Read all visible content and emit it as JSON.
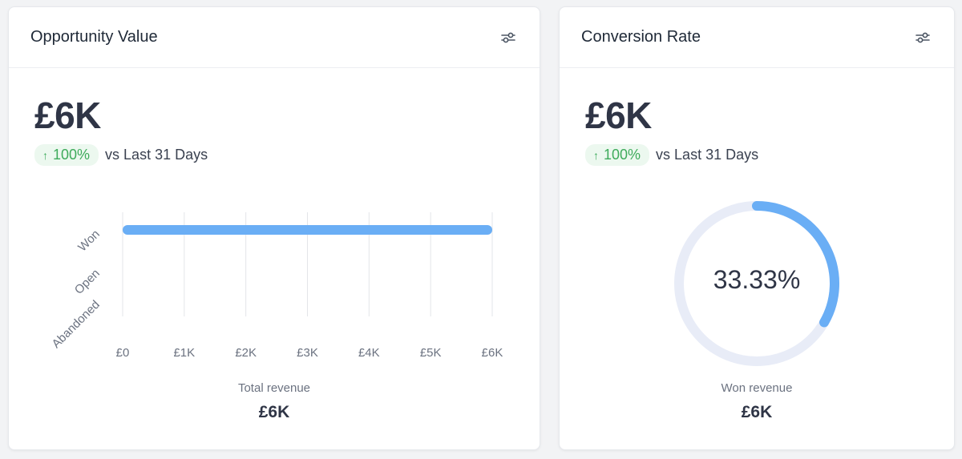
{
  "colors": {
    "accent": "#6aaef5",
    "track": "#e8ecf7",
    "positive": "#3eab5b"
  },
  "opportunity": {
    "title": "Opportunity Value",
    "settings_icon": "sliders-icon",
    "value": "£6K",
    "trend": {
      "arrow": "↑",
      "percent": "100%",
      "comparison": "vs Last 31 Days"
    },
    "footer_label": "Total revenue",
    "footer_value": "£6K"
  },
  "conversion": {
    "title": "Conversion Rate",
    "settings_icon": "sliders-icon",
    "value": "£6K",
    "trend": {
      "arrow": "↑",
      "percent": "100%",
      "comparison": "vs Last 31 Days"
    },
    "center_label": "33.33%",
    "footer_label": "Won revenue",
    "footer_value": "£6K"
  },
  "chart_data": [
    {
      "type": "bar",
      "orientation": "horizontal",
      "categories": [
        "Won",
        "Open",
        "Abandoned"
      ],
      "values": [
        6000,
        0,
        0
      ],
      "xlim": [
        0,
        6000
      ],
      "x_ticks": [
        "£0",
        "£1K",
        "£2K",
        "£3K",
        "£4K",
        "£5K",
        "£6K"
      ],
      "grid": true
    },
    {
      "type": "pie",
      "style": "donut",
      "values": [
        33.33,
        66.67
      ],
      "center_label": "33.33%"
    }
  ]
}
